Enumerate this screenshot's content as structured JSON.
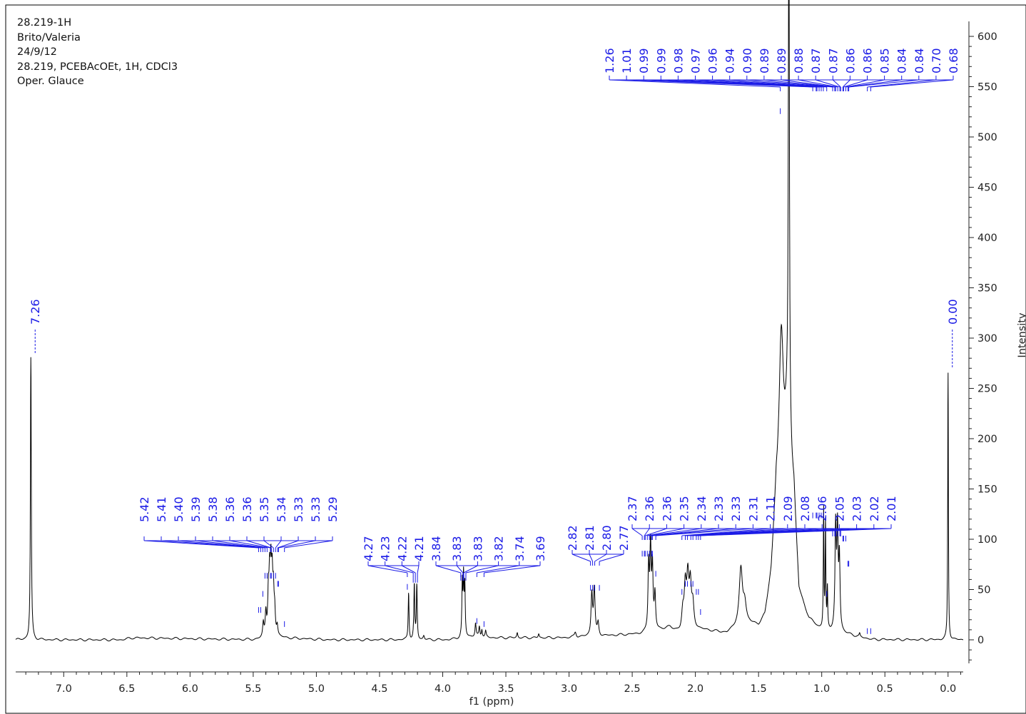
{
  "header_lines": [
    "28.219-1H",
    "Brito/Valeria",
    "24/9/12",
    "28.219, PCEBAcOEt, 1H, CDCl3",
    "Oper. Glauce"
  ],
  "chart_data": {
    "type": "line",
    "title": "",
    "xlabel": "f1 (ppm)",
    "ylabel": "Intensity",
    "x_reversed": true,
    "xlim": [
      7.38,
      -0.12
    ],
    "ylim": [
      -25,
      610
    ],
    "x_ticks": [
      "7.0",
      "6.5",
      "6.0",
      "5.5",
      "5.0",
      "4.5",
      "4.0",
      "3.5",
      "3.0",
      "2.5",
      "2.0",
      "1.5",
      "1.0",
      "0.5",
      "0.0"
    ],
    "x_tick_values": [
      7.0,
      6.5,
      6.0,
      5.5,
      5.0,
      4.5,
      4.0,
      3.5,
      3.0,
      2.5,
      2.0,
      1.5,
      1.0,
      0.5,
      0.0
    ],
    "y_ticks": [
      "0",
      "50",
      "100",
      "150",
      "200",
      "250",
      "300",
      "350",
      "400",
      "450",
      "500",
      "550",
      "600"
    ],
    "y_tick_values": [
      0,
      50,
      100,
      150,
      200,
      250,
      300,
      350,
      400,
      450,
      500,
      550,
      600
    ],
    "peaks": [
      {
        "ppm": 7.26,
        "h": 282,
        "w": 0.004
      },
      {
        "ppm": 5.42,
        "h": 14,
        "w": 0.006
      },
      {
        "ppm": 5.4,
        "h": 24,
        "w": 0.006
      },
      {
        "ppm": 5.38,
        "h": 40,
        "w": 0.006
      },
      {
        "ppm": 5.37,
        "h": 52,
        "w": 0.006
      },
      {
        "ppm": 5.36,
        "h": 58,
        "w": 0.006
      },
      {
        "ppm": 5.35,
        "h": 50,
        "w": 0.006
      },
      {
        "ppm": 5.34,
        "h": 38,
        "w": 0.006
      },
      {
        "ppm": 5.33,
        "h": 22,
        "w": 0.006
      },
      {
        "ppm": 5.31,
        "h": 10,
        "w": 0.006
      },
      {
        "ppm": 4.27,
        "h": 47,
        "w": 0.004
      },
      {
        "ppm": 4.225,
        "h": 54,
        "w": 0.004
      },
      {
        "ppm": 4.205,
        "h": 54,
        "w": 0.004
      },
      {
        "ppm": 4.15,
        "h": 4,
        "w": 0.006
      },
      {
        "ppm": 3.845,
        "h": 52,
        "w": 0.004
      },
      {
        "ppm": 3.835,
        "h": 56,
        "w": 0.004
      },
      {
        "ppm": 3.825,
        "h": 50,
        "w": 0.004
      },
      {
        "ppm": 3.74,
        "h": 13,
        "w": 0.005
      },
      {
        "ppm": 3.71,
        "h": 10,
        "w": 0.005
      },
      {
        "ppm": 3.69,
        "h": 8,
        "w": 0.005
      },
      {
        "ppm": 3.66,
        "h": 6,
        "w": 0.005
      },
      {
        "ppm": 3.41,
        "h": 5,
        "w": 0.005
      },
      {
        "ppm": 3.24,
        "h": 4,
        "w": 0.005
      },
      {
        "ppm": 2.95,
        "h": 5,
        "w": 0.008
      },
      {
        "ppm": 2.82,
        "h": 42,
        "w": 0.007
      },
      {
        "ppm": 2.8,
        "h": 46,
        "w": 0.007
      },
      {
        "ppm": 2.77,
        "h": 12,
        "w": 0.007
      },
      {
        "ppm": 2.37,
        "h": 65,
        "w": 0.006
      },
      {
        "ppm": 2.355,
        "h": 80,
        "w": 0.006
      },
      {
        "ppm": 2.34,
        "h": 60,
        "w": 0.006
      },
      {
        "ppm": 2.32,
        "h": 35,
        "w": 0.006
      },
      {
        "ppm": 2.1,
        "h": 18,
        "w": 0.01
      },
      {
        "ppm": 2.08,
        "h": 42,
        "w": 0.01
      },
      {
        "ppm": 2.06,
        "h": 50,
        "w": 0.01
      },
      {
        "ppm": 2.04,
        "h": 42,
        "w": 0.01
      },
      {
        "ppm": 2.02,
        "h": 22,
        "w": 0.01
      },
      {
        "ppm": 1.64,
        "h": 55,
        "w": 0.015
      },
      {
        "ppm": 1.61,
        "h": 20,
        "w": 0.015
      },
      {
        "ppm": 1.32,
        "h": 155,
        "w": 0.02
      },
      {
        "ppm": 1.27,
        "h": 80,
        "w": 0.03
      },
      {
        "ppm": 1.26,
        "h": 520,
        "w": 0.005
      },
      {
        "ppm": 0.985,
        "h": 118,
        "w": 0.003
      },
      {
        "ppm": 0.97,
        "h": 105,
        "w": 0.003
      },
      {
        "ppm": 0.955,
        "h": 40,
        "w": 0.003
      },
      {
        "ppm": 0.89,
        "h": 100,
        "w": 0.006
      },
      {
        "ppm": 0.875,
        "h": 95,
        "w": 0.006
      },
      {
        "ppm": 0.86,
        "h": 70,
        "w": 0.006
      },
      {
        "ppm": 0.7,
        "h": 3,
        "w": 0.004
      },
      {
        "ppm": 0.0,
        "h": 268,
        "w": 0.003
      }
    ],
    "baseline_ppm": [
      7.38,
      6.55,
      6.45,
      5.48,
      5.3,
      4.9,
      4.6,
      3.95,
      3.78,
      3.6,
      3.3,
      3.05,
      2.7,
      2.4,
      2.2,
      2.12,
      1.98,
      1.85,
      1.75,
      1.68,
      1.57,
      1.5,
      1.45,
      1.4,
      1.36,
      1.22,
      1.18,
      1.1,
      1.02,
      0.8,
      0.6,
      -0.12
    ],
    "baseline_val": [
      0,
      0,
      2,
      0,
      2,
      0,
      0,
      0,
      3,
      2,
      2,
      2,
      4,
      6,
      12,
      6,
      10,
      8,
      6,
      12,
      14,
      12,
      20,
      60,
      135,
      130,
      40,
      18,
      10,
      5,
      0,
      0
    ],
    "annotation_groups": [
      {
        "labels": [
          "7.26"
        ],
        "vertical": true,
        "ppm": 7.26
      },
      {
        "labels": [
          "5.42",
          "5.41",
          "5.40",
          "5.39",
          "5.38",
          "5.36",
          "5.36",
          "5.35",
          "5.34",
          "5.33",
          "5.33",
          "5.29"
        ],
        "ppms": [
          5.42,
          5.41,
          5.4,
          5.39,
          5.38,
          5.36,
          5.36,
          5.35,
          5.34,
          5.33,
          5.33,
          5.29
        ]
      },
      {
        "labels": [
          "4.27",
          "4.23",
          "4.22",
          "4.21"
        ],
        "ppms": [
          4.27,
          4.23,
          4.22,
          4.21
        ]
      },
      {
        "labels": [
          "3.84",
          "3.83",
          "3.83",
          "3.82",
          "3.74",
          "3.69"
        ],
        "ppms": [
          3.84,
          3.83,
          3.83,
          3.82,
          3.74,
          3.69
        ]
      },
      {
        "labels": [
          "2.82",
          "2.81",
          "2.80",
          "2.77"
        ],
        "ppms": [
          2.82,
          2.81,
          2.8,
          2.77
        ]
      },
      {
        "labels": [
          "2.37",
          "2.36",
          "2.36",
          "2.35",
          "2.34",
          "2.33",
          "2.33",
          "2.31",
          "2.11",
          "2.09",
          "2.08",
          "2.06",
          "2.05",
          "2.03",
          "2.02",
          "2.01"
        ],
        "ppms": [
          2.37,
          2.36,
          2.36,
          2.35,
          2.34,
          2.33,
          2.33,
          2.31,
          2.11,
          2.09,
          2.08,
          2.06,
          2.05,
          2.03,
          2.02,
          2.01
        ]
      },
      {
        "labels": [
          "1.26",
          "1.01",
          "0.99",
          "0.99",
          "0.98",
          "0.97",
          "0.96",
          "0.94",
          "0.90",
          "0.89",
          "0.89",
          "0.88",
          "0.87",
          "0.87",
          "0.86",
          "0.86",
          "0.85",
          "0.84",
          "0.84",
          "0.70",
          "0.68"
        ],
        "ppms": [
          1.26,
          1.01,
          0.99,
          0.99,
          0.98,
          0.97,
          0.96,
          0.94,
          0.9,
          0.89,
          0.89,
          0.88,
          0.87,
          0.87,
          0.86,
          0.86,
          0.85,
          0.84,
          0.84,
          0.7,
          0.68
        ]
      },
      {
        "labels": [
          "0.00"
        ],
        "vertical": true,
        "ppm": 0.0
      }
    ],
    "colors": {
      "spectrum": "#000000",
      "annotation": "#1a1ae6",
      "axis": "#222222"
    }
  }
}
